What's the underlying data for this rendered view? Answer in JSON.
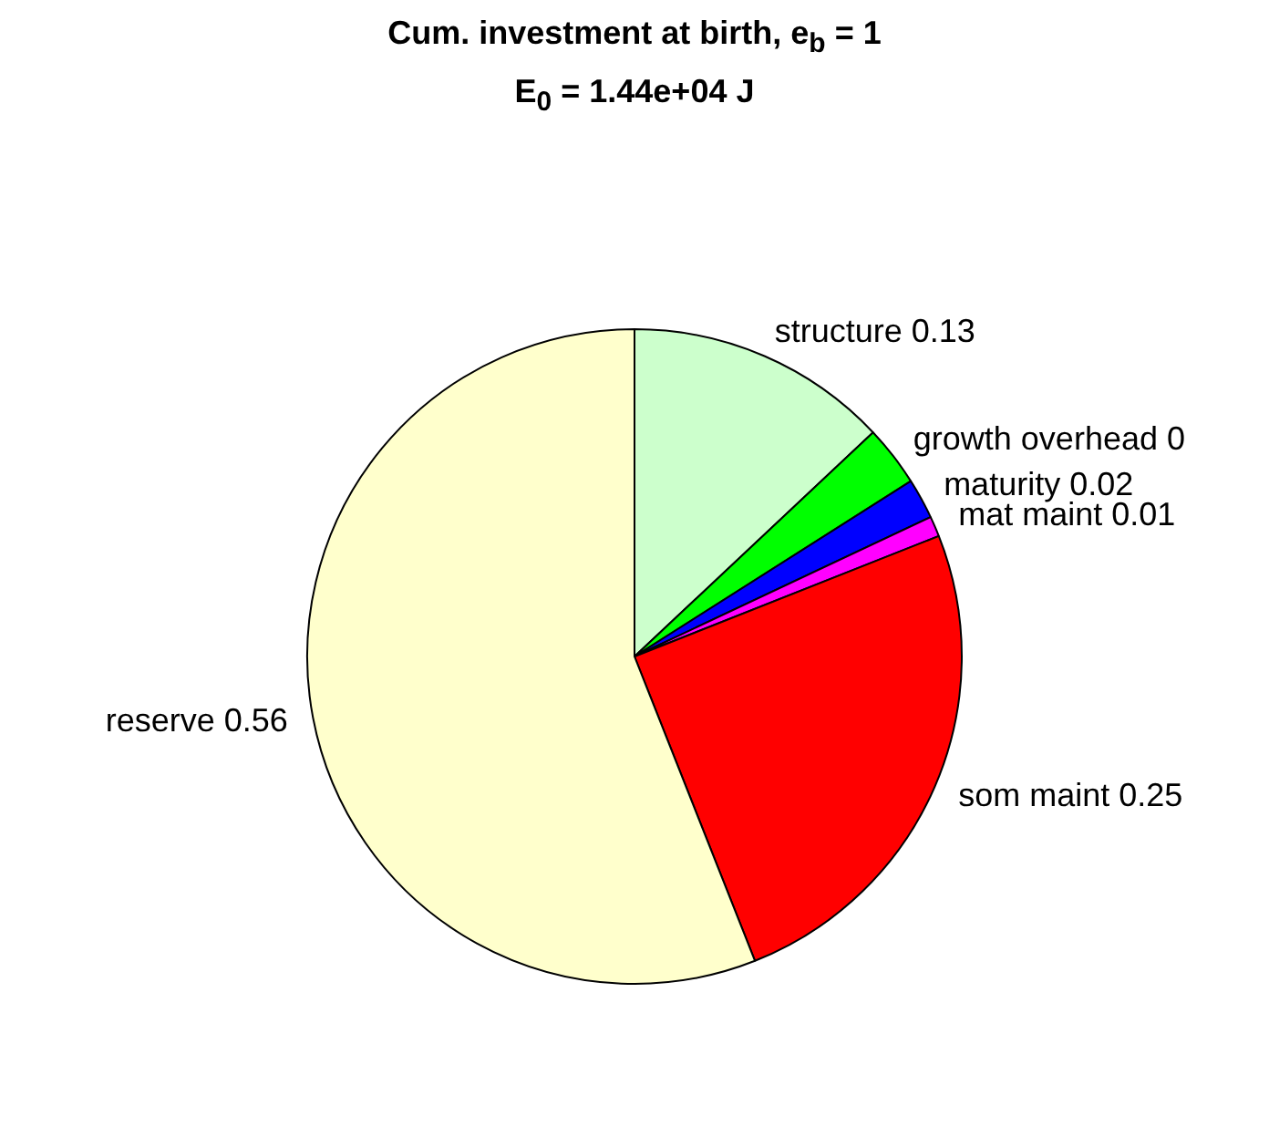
{
  "chart_data": {
    "type": "pie",
    "title": "Cum. investment at birth, e$_{b}$ = 1",
    "subtitle": "E$_{0}$ = 1.44e+04 J",
    "categories": [
      "structure 0.13",
      "growth overhead 0",
      "maturity 0.02",
      "mat maint 0.01",
      "som maint 0.25",
      "reserve 0.56"
    ],
    "values": [
      13,
      3,
      2,
      1,
      25,
      56
    ],
    "colors": [
      "#ccffcc",
      "#00ff00",
      "#0000ff",
      "#ff00ff",
      "#ff0000",
      "#ffffcc"
    ],
    "legend": false
  }
}
